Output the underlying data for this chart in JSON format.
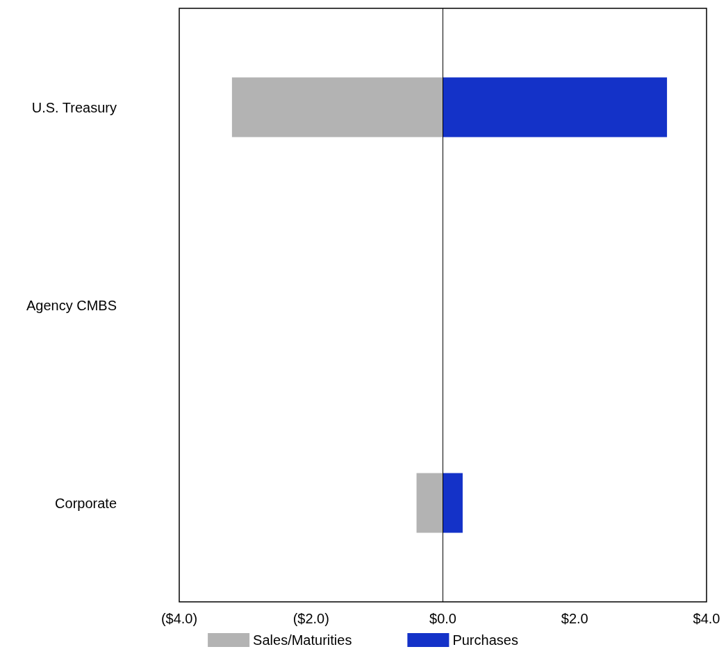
{
  "chart_data": {
    "type": "bar",
    "orientation": "horizontal",
    "stacked": true,
    "categories": [
      "U.S. Treasury",
      "Agency CMBS",
      "Corporate"
    ],
    "series": [
      {
        "name": "Sales/Maturities",
        "color": "#b3b3b3",
        "values": [
          -3.2,
          0,
          -0.4
        ]
      },
      {
        "name": "Purchases",
        "color": "#1432c8",
        "values": [
          3.4,
          0,
          0.3
        ]
      }
    ],
    "xlim": [
      -4,
      4
    ],
    "xticks": [
      {
        "value": -4,
        "label": "($4.0)"
      },
      {
        "value": -2,
        "label": "($2.0)"
      },
      {
        "value": 0,
        "label": "$0.0"
      },
      {
        "value": 2,
        "label": "$2.0"
      },
      {
        "value": 4,
        "label": "$4.0"
      }
    ],
    "ref_lines": [
      {
        "axis": "x",
        "value": 0,
        "color": "#000000"
      }
    ],
    "grid": false,
    "legend": "bottom"
  }
}
